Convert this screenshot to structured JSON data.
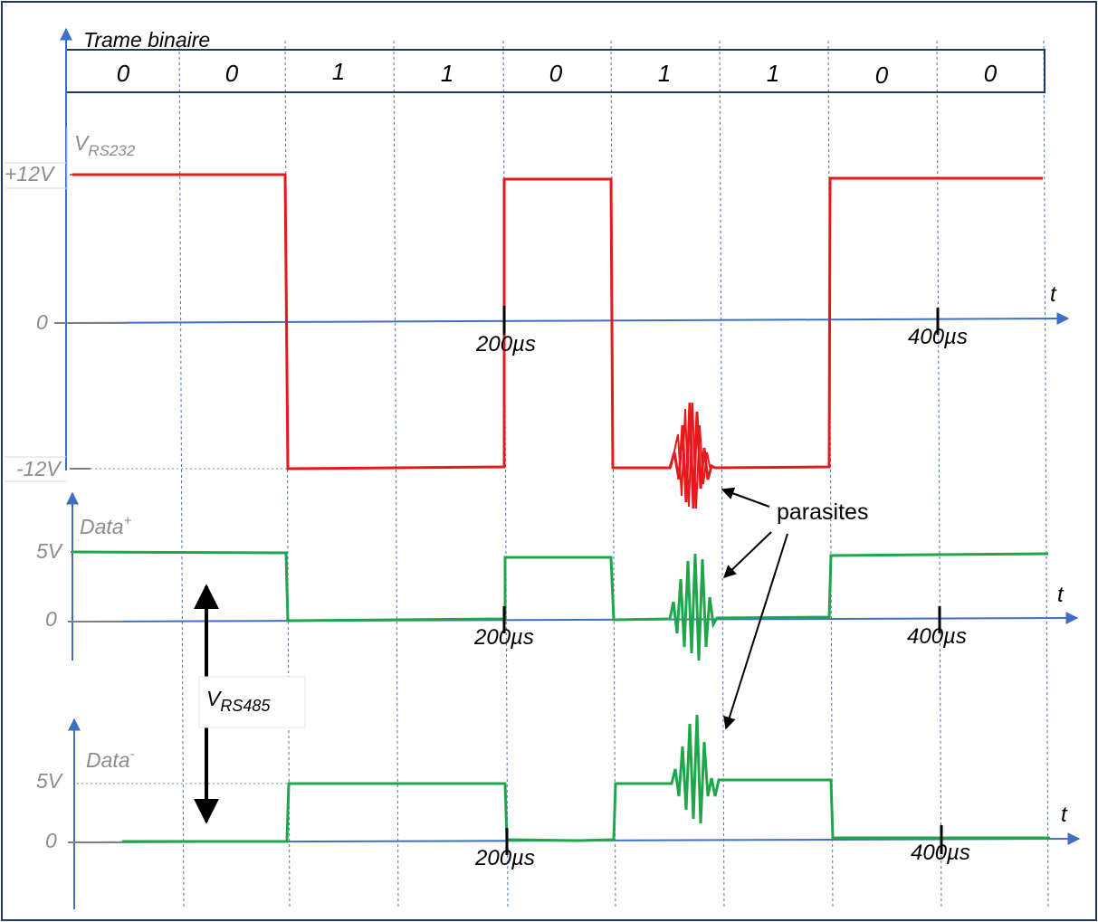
{
  "frame": {
    "title": "Trame binaire",
    "bits": [
      "0",
      "0",
      "1",
      "1",
      "0",
      "1",
      "1",
      "0",
      "0"
    ]
  },
  "rs232": {
    "label_main": "V",
    "label_sub": "RS232",
    "level_high": "+12V",
    "level_zero": "0",
    "level_low": "-12V"
  },
  "data_plus": {
    "label_main": "Data",
    "label_sup": "+",
    "level_high": "5V",
    "level_zero": "0"
  },
  "data_minus": {
    "label_main": "Data",
    "label_sup": "-",
    "level_high": "5V",
    "level_zero": "0"
  },
  "rs485": {
    "label_main": "V",
    "label_sub": "RS485"
  },
  "time_axis": {
    "unit": "t",
    "tick_200": "200µs",
    "tick_400": "400µs"
  },
  "annotation": {
    "parasites": "parasites"
  },
  "colors": {
    "rs232": "#e41a1c",
    "rs485": "#1fa64a",
    "axis": "#3f6fc4"
  }
}
